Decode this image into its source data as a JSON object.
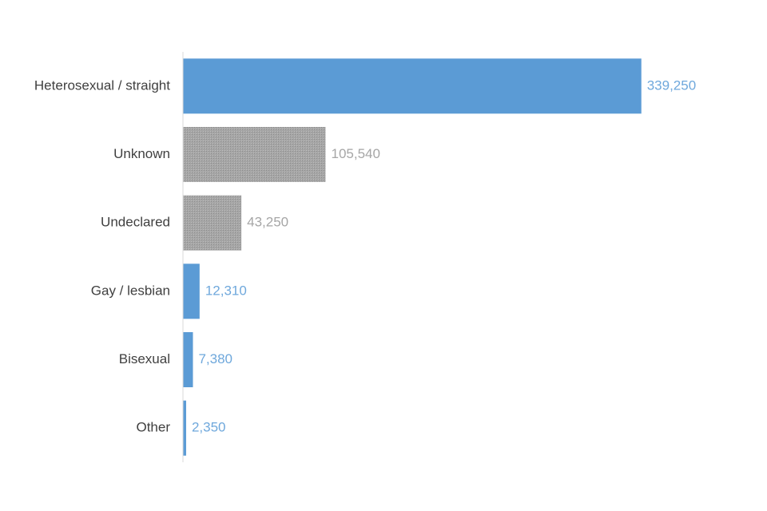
{
  "chart_data": {
    "type": "bar",
    "orientation": "horizontal",
    "title": "",
    "xlabel": "",
    "ylabel": "",
    "grid": false,
    "xlim": [
      0,
      340000
    ],
    "categories": [
      "Heterosexual / straight",
      "Unknown",
      "Undeclared",
      "Gay / lesbian",
      "Bisexual",
      "Other"
    ],
    "values": [
      339250,
      105540,
      43250,
      12310,
      7380,
      2350
    ],
    "value_labels": [
      "339,250",
      "105,540",
      "43,250",
      "12,310",
      "7,380",
      "2,350"
    ],
    "bar_styles": [
      "highlight",
      "pattern",
      "pattern",
      "highlight",
      "highlight",
      "highlight"
    ]
  },
  "colors": {
    "highlight_bar": "#5b9bd5",
    "highlight_label": "#6fa8dc",
    "pattern_bar": "#a6a6a6",
    "pattern_label": "#a6a6a6",
    "category_text": "#404040",
    "axis": "#d9d9d9"
  }
}
